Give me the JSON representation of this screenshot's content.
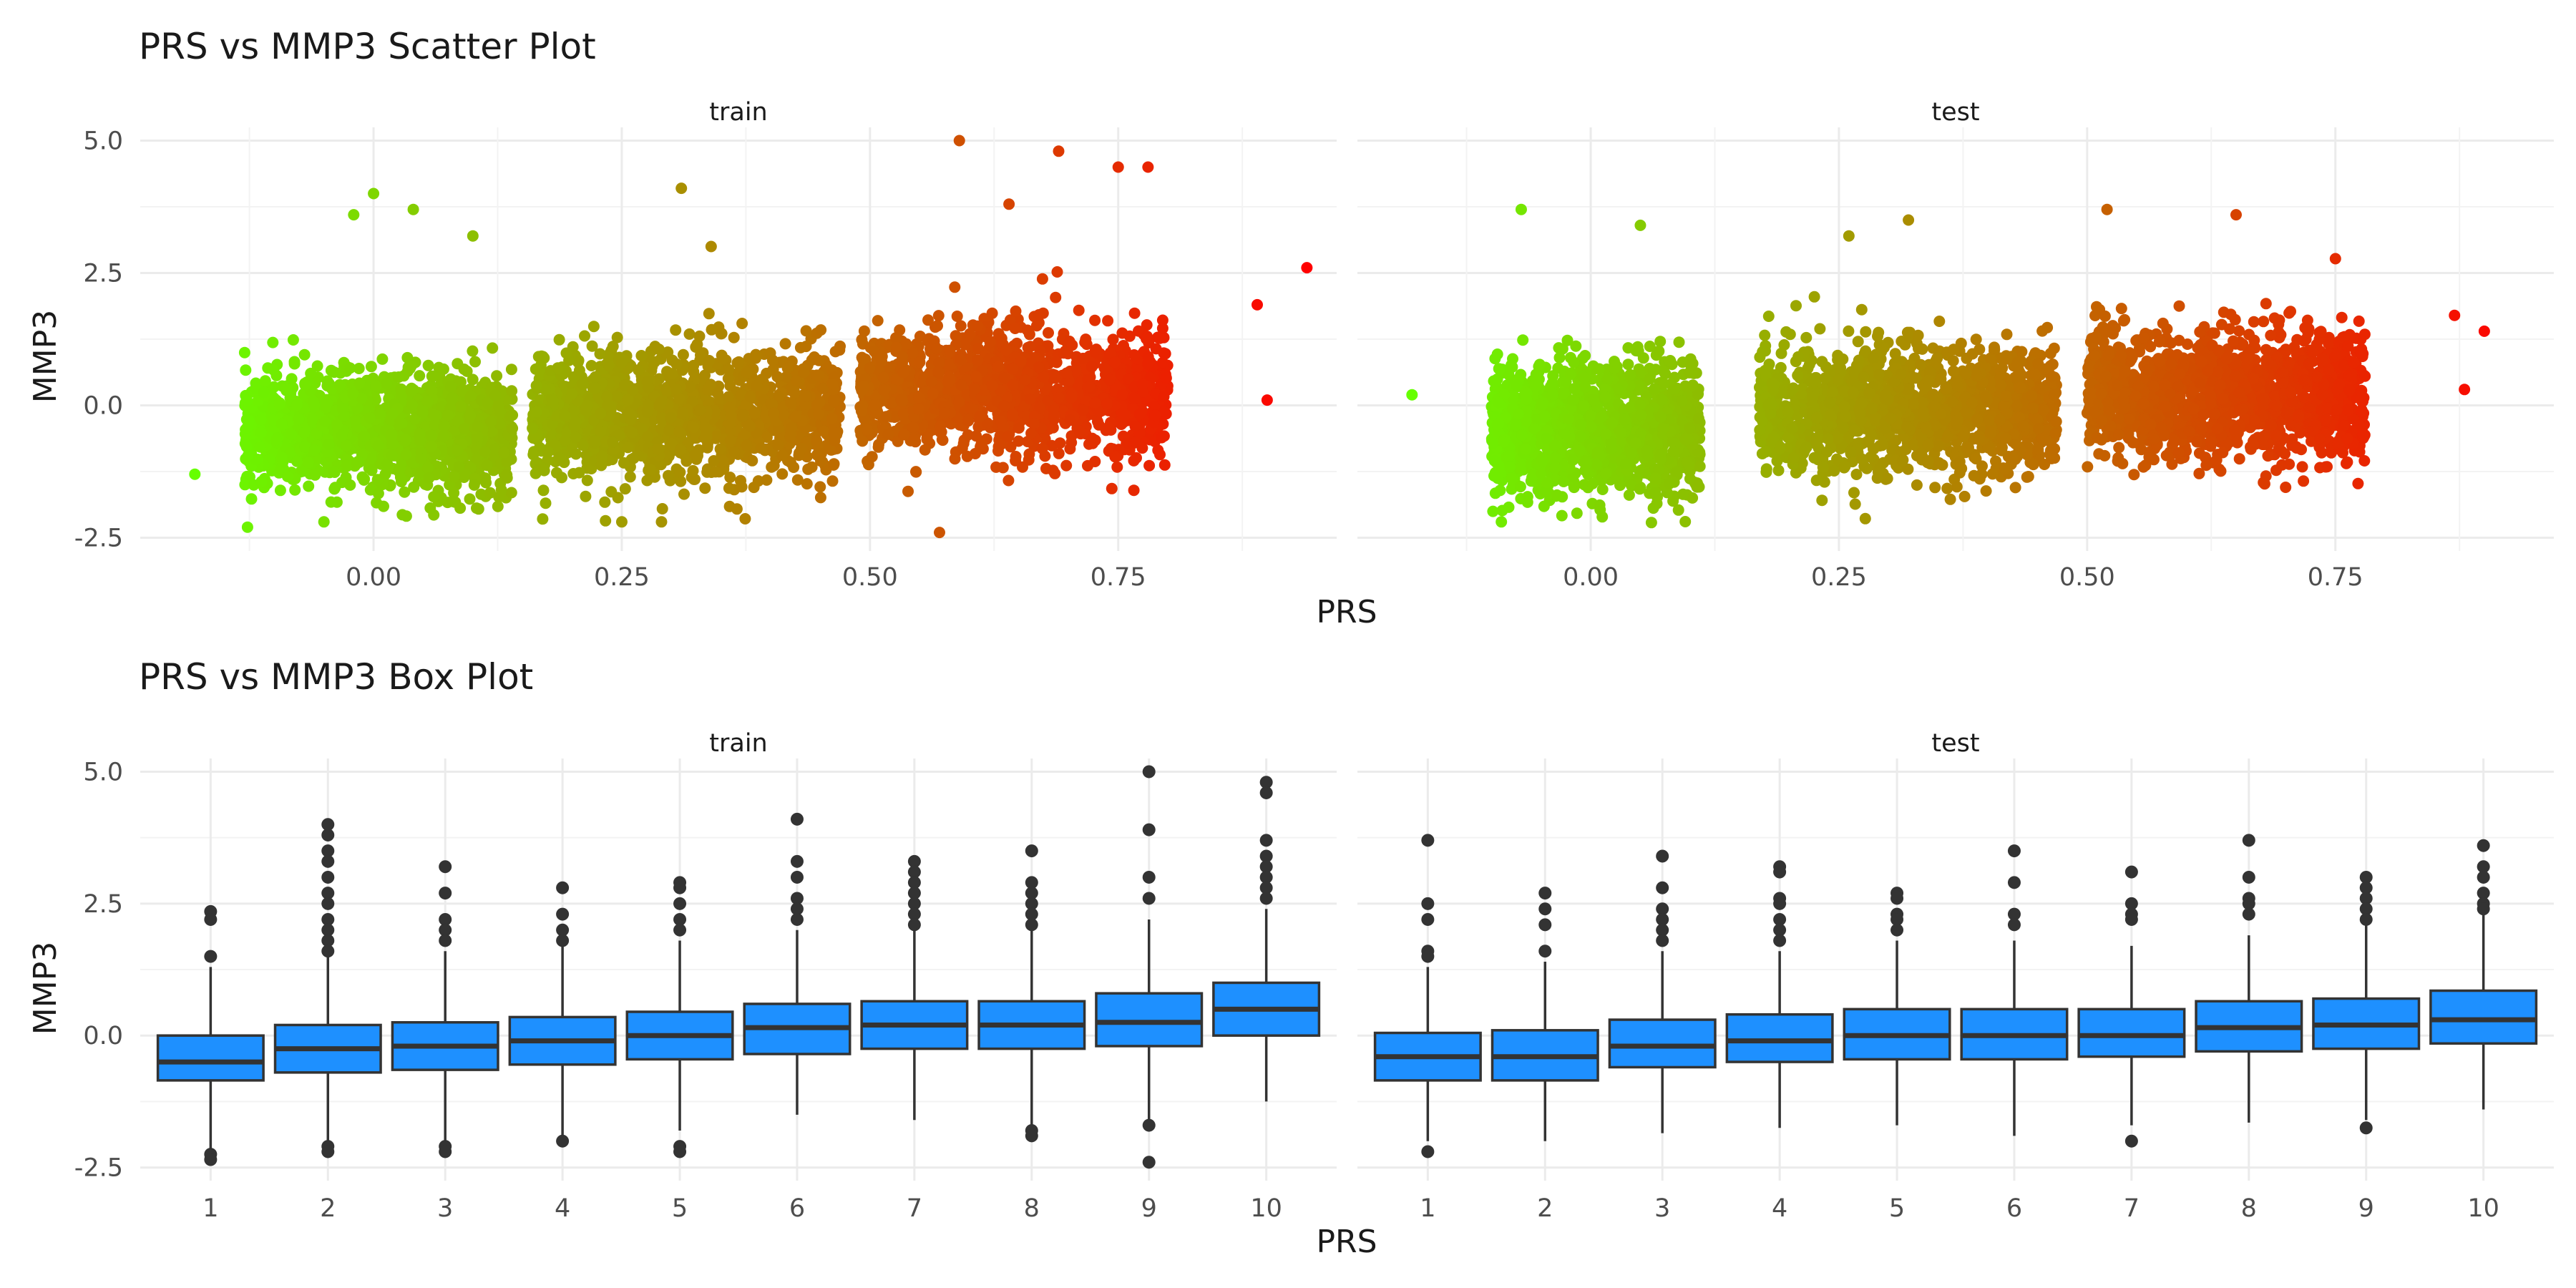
{
  "chart_data": [
    {
      "type": "scatter",
      "title": "PRS vs MMP3 Scatter Plot",
      "xlabel": "PRS",
      "ylabel": "MMP3",
      "x_ticks": [
        "0.00",
        "0.25",
        "0.50",
        "0.75"
      ],
      "y_ticks": [
        "-2.5",
        "0.0",
        "2.5",
        "5.0"
      ],
      "xlim": [
        -0.235,
        0.97
      ],
      "ylim": [
        -2.75,
        5.25
      ],
      "grid": true,
      "legend": "none",
      "color_scale": {
        "low": "#66ff00",
        "high": "#ff0000",
        "mapped_to": "PRS"
      },
      "panels": [
        {
          "name": "train",
          "clusters": [
            {
              "x_range": [
                -0.13,
                0.14
              ],
              "y_mean": -0.5,
              "y_sd": 0.55
            },
            {
              "x_range": [
                0.16,
                0.47
              ],
              "y_mean": -0.15,
              "y_sd": 0.6
            },
            {
              "x_range": [
                0.49,
                0.8
              ],
              "y_mean": 0.25,
              "y_sd": 0.6
            }
          ],
          "highlight_points": [
            {
              "x": 0.0,
              "y": 4.0
            },
            {
              "x": -0.02,
              "y": 3.6
            },
            {
              "x": 0.04,
              "y": 3.7
            },
            {
              "x": 0.1,
              "y": 3.2
            },
            {
              "x": 0.31,
              "y": 4.1
            },
            {
              "x": 0.59,
              "y": 5.0
            },
            {
              "x": 0.69,
              "y": 4.8
            },
            {
              "x": 0.75,
              "y": 4.5
            },
            {
              "x": 0.78,
              "y": 4.5
            },
            {
              "x": 0.94,
              "y": 2.6
            },
            {
              "x": 0.89,
              "y": 1.9
            },
            {
              "x": 0.57,
              "y": -2.4
            },
            {
              "x": 0.25,
              "y": -2.2
            },
            {
              "x": 0.29,
              "y": -2.2
            },
            {
              "x": -0.05,
              "y": -2.2
            },
            {
              "x": -0.18,
              "y": -1.3
            },
            {
              "x": 0.9,
              "y": 0.1
            },
            {
              "x": 0.64,
              "y": 3.8
            },
            {
              "x": 0.34,
              "y": 3.0
            }
          ]
        },
        {
          "name": "test",
          "clusters": [
            {
              "x_range": [
                -0.1,
                0.11
              ],
              "y_mean": -0.45,
              "y_sd": 0.6
            },
            {
              "x_range": [
                0.17,
                0.47
              ],
              "y_mean": -0.1,
              "y_sd": 0.6
            },
            {
              "x_range": [
                0.5,
                0.78
              ],
              "y_mean": 0.2,
              "y_sd": 0.6
            }
          ],
          "highlight_points": [
            {
              "x": -0.07,
              "y": 3.7
            },
            {
              "x": 0.05,
              "y": 3.4
            },
            {
              "x": 0.52,
              "y": 3.7
            },
            {
              "x": 0.65,
              "y": 3.6
            },
            {
              "x": 0.9,
              "y": 1.4
            },
            {
              "x": 0.87,
              "y": 1.7
            },
            {
              "x": -0.18,
              "y": 0.2
            },
            {
              "x": -0.09,
              "y": -2.2
            },
            {
              "x": 0.26,
              "y": 3.2
            },
            {
              "x": 0.32,
              "y": 3.5
            },
            {
              "x": 0.88,
              "y": 0.3
            }
          ]
        }
      ]
    },
    {
      "type": "box",
      "title": "PRS vs MMP3 Box Plot",
      "xlabel": "PRS",
      "ylabel": "MMP3",
      "categories": [
        "1",
        "2",
        "3",
        "4",
        "5",
        "6",
        "7",
        "8",
        "9",
        "10"
      ],
      "y_ticks": [
        "-2.5",
        "0.0",
        "2.5",
        "5.0"
      ],
      "ylim": [
        -2.75,
        5.25
      ],
      "fill": "#1e90ff",
      "grid": true,
      "panels": [
        {
          "name": "train",
          "boxes": [
            {
              "q1": -0.85,
              "median": -0.5,
              "q3": 0.0,
              "lower": -2.15,
              "upper": 1.3,
              "outliers": [
                2.35,
                2.2,
                1.5,
                -2.25,
                -2.35
              ]
            },
            {
              "q1": -0.7,
              "median": -0.25,
              "q3": 0.2,
              "lower": -2.0,
              "upper": 1.5,
              "outliers": [
                4.0,
                3.8,
                3.5,
                3.3,
                3.0,
                2.7,
                2.5,
                2.2,
                2.0,
                1.8,
                1.6,
                -2.1,
                -2.2
              ]
            },
            {
              "q1": -0.65,
              "median": -0.2,
              "q3": 0.25,
              "lower": -2.0,
              "upper": 1.6,
              "outliers": [
                3.2,
                2.7,
                2.2,
                2.0,
                1.8,
                -2.1,
                -2.2
              ]
            },
            {
              "q1": -0.55,
              "median": -0.1,
              "q3": 0.35,
              "lower": -1.9,
              "upper": 1.7,
              "outliers": [
                2.8,
                2.3,
                2.0,
                1.8,
                -2.0
              ]
            },
            {
              "q1": -0.45,
              "median": 0.0,
              "q3": 0.45,
              "lower": -1.8,
              "upper": 1.8,
              "outliers": [
                2.9,
                2.8,
                2.5,
                2.2,
                2.0,
                -2.1,
                -2.2
              ]
            },
            {
              "q1": -0.35,
              "median": 0.15,
              "q3": 0.6,
              "lower": -1.5,
              "upper": 2.0,
              "outliers": [
                4.1,
                3.3,
                3.0,
                2.6,
                2.4,
                2.2
              ]
            },
            {
              "q1": -0.25,
              "median": 0.2,
              "q3": 0.65,
              "lower": -1.6,
              "upper": 2.0,
              "outliers": [
                3.3,
                3.1,
                2.9,
                2.7,
                2.5,
                2.3,
                2.1
              ]
            },
            {
              "q1": -0.25,
              "median": 0.2,
              "q3": 0.65,
              "lower": -1.7,
              "upper": 2.0,
              "outliers": [
                3.5,
                2.9,
                2.7,
                2.5,
                2.3,
                2.1,
                -1.8,
                -1.9
              ]
            },
            {
              "q1": -0.2,
              "median": 0.25,
              "q3": 0.8,
              "lower": -1.6,
              "upper": 2.2,
              "outliers": [
                5.0,
                3.9,
                3.0,
                2.6,
                -1.7,
                -2.4
              ]
            },
            {
              "q1": 0.0,
              "median": 0.5,
              "q3": 1.0,
              "lower": -1.25,
              "upper": 2.4,
              "outliers": [
                4.8,
                4.6,
                3.7,
                3.4,
                3.2,
                3.0,
                2.8,
                2.6
              ]
            }
          ]
        },
        {
          "name": "test",
          "boxes": [
            {
              "q1": -0.85,
              "median": -0.4,
              "q3": 0.05,
              "lower": -2.0,
              "upper": 1.3,
              "outliers": [
                3.7,
                2.5,
                2.2,
                1.6,
                1.5,
                -2.2
              ]
            },
            {
              "q1": -0.85,
              "median": -0.4,
              "q3": 0.1,
              "lower": -2.0,
              "upper": 1.4,
              "outliers": [
                2.7,
                2.4,
                2.1,
                1.6
              ]
            },
            {
              "q1": -0.6,
              "median": -0.2,
              "q3": 0.3,
              "lower": -1.85,
              "upper": 1.6,
              "outliers": [
                3.4,
                2.8,
                2.4,
                2.2,
                2.0,
                1.8
              ]
            },
            {
              "q1": -0.5,
              "median": -0.1,
              "q3": 0.4,
              "lower": -1.75,
              "upper": 1.6,
              "outliers": [
                3.2,
                3.1,
                2.6,
                2.5,
                2.2,
                2.0,
                1.8
              ]
            },
            {
              "q1": -0.45,
              "median": 0.0,
              "q3": 0.5,
              "lower": -1.7,
              "upper": 1.8,
              "outliers": [
                2.7,
                2.6,
                2.3,
                2.2,
                2.0
              ]
            },
            {
              "q1": -0.45,
              "median": 0.0,
              "q3": 0.5,
              "lower": -1.9,
              "upper": 1.8,
              "outliers": [
                3.5,
                2.9,
                2.3,
                2.1
              ]
            },
            {
              "q1": -0.4,
              "median": 0.0,
              "q3": 0.5,
              "lower": -1.7,
              "upper": 1.7,
              "outliers": [
                3.1,
                2.5,
                2.3,
                2.2,
                -2.0
              ]
            },
            {
              "q1": -0.3,
              "median": 0.15,
              "q3": 0.65,
              "lower": -1.65,
              "upper": 1.9,
              "outliers": [
                3.7,
                3.0,
                2.6,
                2.5,
                2.3
              ]
            },
            {
              "q1": -0.25,
              "median": 0.2,
              "q3": 0.7,
              "lower": -1.6,
              "upper": 2.1,
              "outliers": [
                3.0,
                2.8,
                2.6,
                2.4,
                2.2,
                -1.75
              ]
            },
            {
              "q1": -0.15,
              "median": 0.3,
              "q3": 0.85,
              "lower": -1.4,
              "upper": 2.3,
              "outliers": [
                3.6,
                3.2,
                3.0,
                2.7,
                2.5,
                2.4
              ]
            }
          ]
        }
      ]
    }
  ]
}
